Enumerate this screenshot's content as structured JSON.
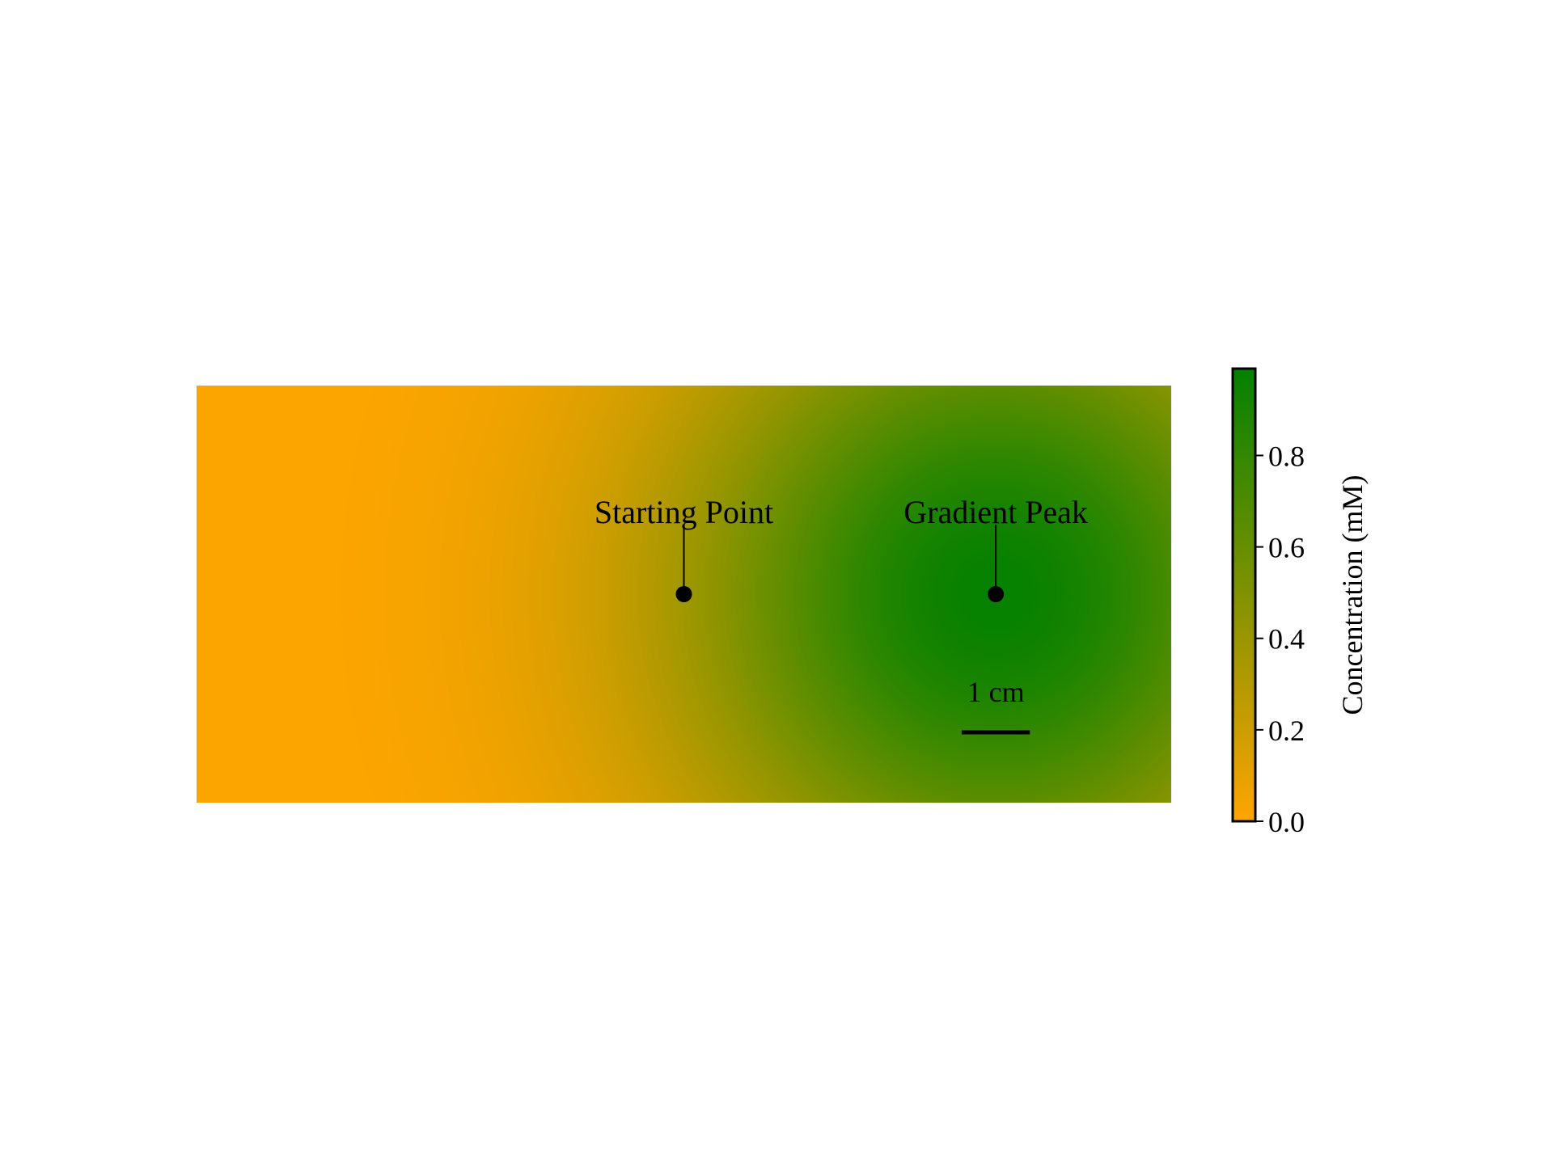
{
  "chart_data": {
    "type": "heatmap",
    "title": "",
    "xlabel": "",
    "ylabel": "",
    "colormap": {
      "low_color": "#FFA500",
      "high_color": "#008000",
      "vmin": 0.0,
      "vmax": 1.0
    },
    "field": {
      "description_type": "gaussian",
      "baseline": 0.0,
      "peak_value": 0.98,
      "peak_location": "right-center",
      "peak_relative_x": 0.82,
      "peak_relative_y": 0.5,
      "spread_relative": 0.23
    },
    "annotations": [
      {
        "label": "Starting Point",
        "relative_x": 0.5,
        "relative_y": 0.5
      },
      {
        "label": "Gradient Peak",
        "relative_x": 0.82,
        "relative_y": 0.5
      }
    ],
    "scale_bar": {
      "label": "1 cm",
      "length_relative": 0.07
    },
    "colorbar": {
      "label": "Concentration (mM)",
      "ticks": [
        0.0,
        0.2,
        0.4,
        0.6,
        0.8
      ],
      "tick_labels": [
        "0.0",
        "0.2",
        "0.4",
        "0.6",
        "0.8"
      ],
      "range": [
        0.0,
        0.99
      ]
    }
  }
}
